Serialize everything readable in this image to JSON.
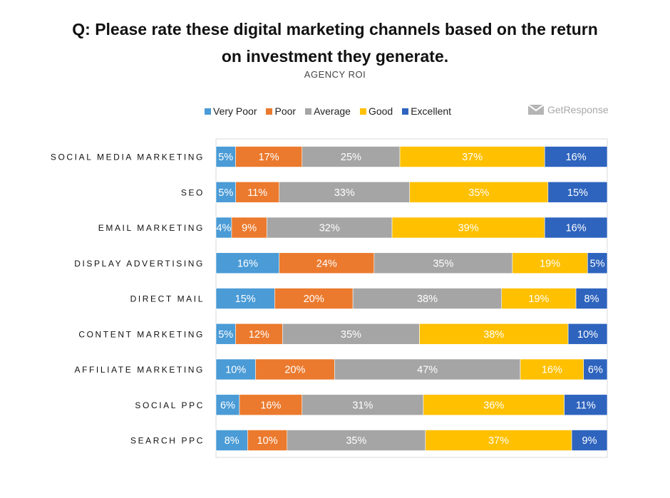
{
  "chart_data": {
    "type": "bar",
    "orientation": "horizontal",
    "stacked": true,
    "title": "Q: Please rate these digital marketing channels based on the return on investment they generate.",
    "title_lines": [
      "Q: Please rate these digital marketing channels based on the return",
      "on investment they generate."
    ],
    "subtitle": "AGENCY ROI",
    "brand": "GetResponse",
    "legend_position": "top",
    "value_suffix": "%",
    "categories": [
      "SOCIAL MEDIA MARKETING",
      "SEO",
      "EMAIL MARKETING",
      "DISPLAY ADVERTISING",
      "DIRECT MAIL",
      "CONTENT MARKETING",
      "AFFILIATE MARKETING",
      "SOCIAL PPC",
      "SEARCH PPC"
    ],
    "series": [
      {
        "name": "Very Poor",
        "color": "#4A9BD6",
        "values": [
          5,
          5,
          4,
          16,
          15,
          5,
          10,
          6,
          8
        ]
      },
      {
        "name": "Poor",
        "color": "#EB7A2E",
        "values": [
          17,
          11,
          9,
          24,
          20,
          12,
          20,
          16,
          10
        ]
      },
      {
        "name": "Average",
        "color": "#A5A5A5",
        "values": [
          25,
          33,
          32,
          35,
          38,
          35,
          47,
          31,
          35
        ]
      },
      {
        "name": "Good",
        "color": "#FFC000",
        "values": [
          37,
          35,
          39,
          19,
          19,
          38,
          16,
          36,
          37
        ]
      },
      {
        "name": "Excellent",
        "color": "#2E64BE",
        "values": [
          16,
          15,
          16,
          5,
          8,
          10,
          6,
          11,
          9
        ]
      }
    ]
  }
}
